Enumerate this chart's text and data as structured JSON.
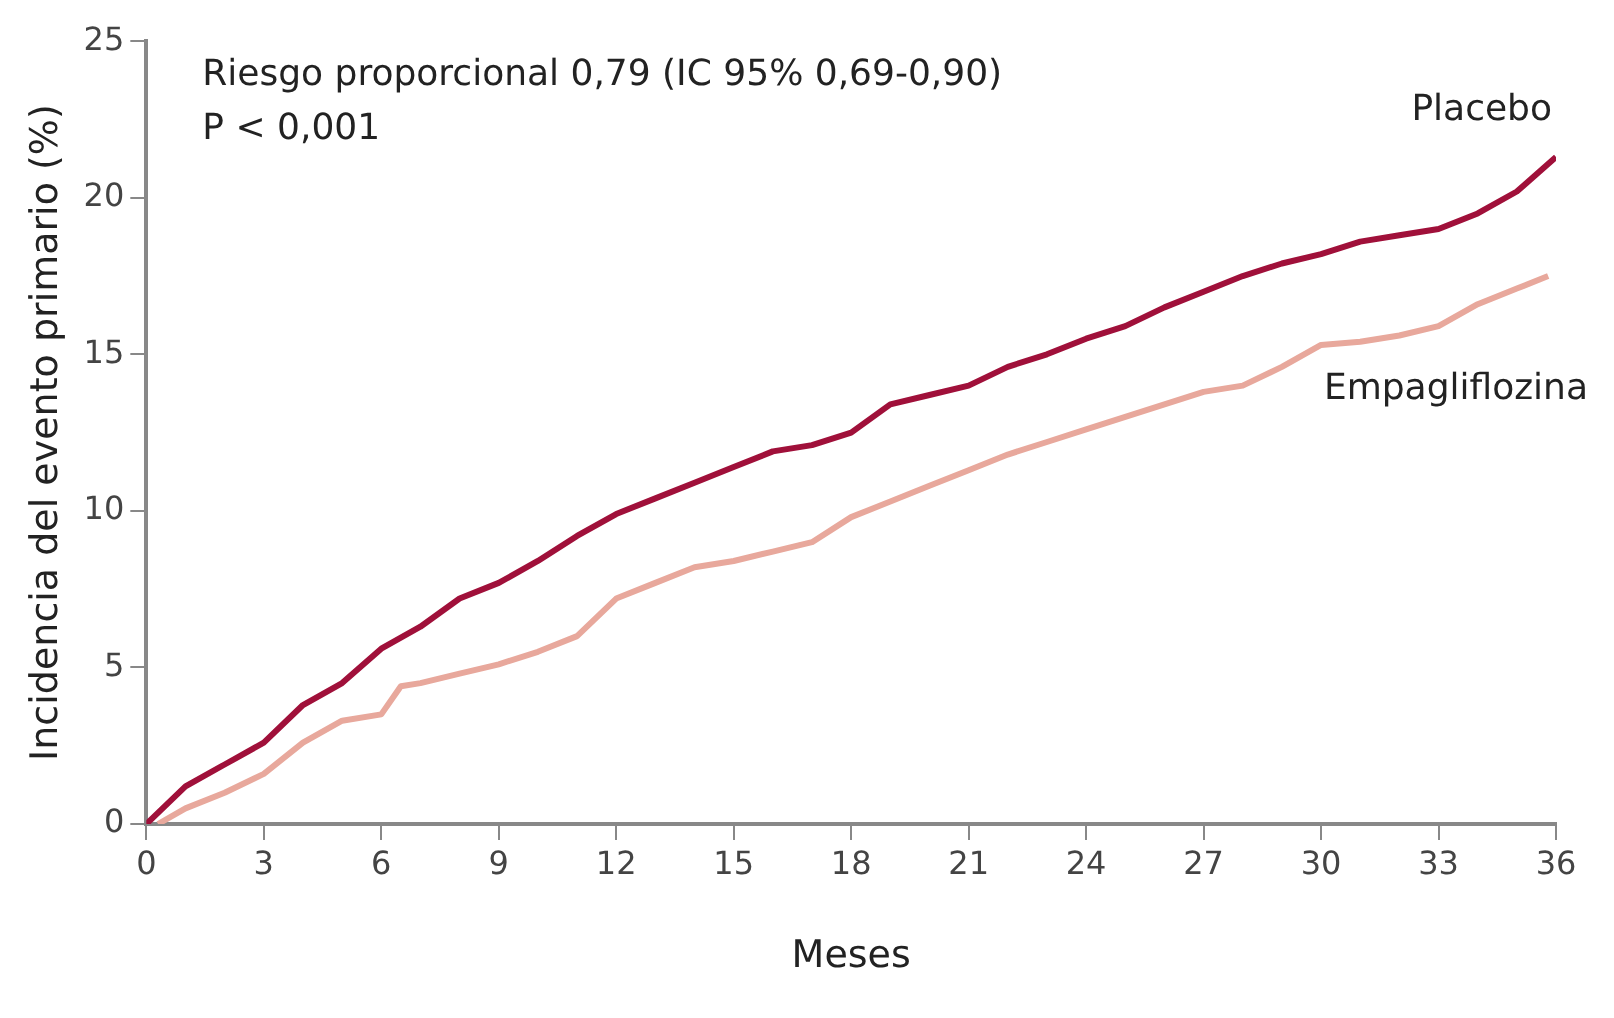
{
  "chart_data": {
    "type": "line",
    "xlabel": "Meses",
    "ylabel": "Incidencia del evento primario (%)",
    "annotations": [
      "Riesgo proporcional 0,79 (IC 95% 0,69-0,90)",
      "P < 0,001"
    ],
    "series": [
      {
        "name": "Placebo",
        "color": "#a0103a",
        "x": [
          0,
          1,
          2,
          3,
          4,
          5,
          6,
          7,
          8,
          9,
          10,
          11,
          12,
          13,
          14,
          15,
          16,
          17,
          18,
          19,
          20,
          21,
          22,
          23,
          24,
          25,
          26,
          27,
          28,
          29,
          30,
          31,
          32,
          33,
          34,
          35,
          36
        ],
        "values": [
          0,
          1.2,
          1.9,
          2.6,
          3.8,
          4.5,
          5.6,
          6.3,
          7.2,
          7.7,
          8.4,
          9.2,
          9.9,
          10.4,
          10.9,
          11.4,
          11.9,
          12.1,
          12.5,
          13.4,
          13.7,
          14.0,
          14.6,
          15.0,
          15.5,
          15.9,
          16.5,
          17.0,
          17.5,
          17.9,
          18.2,
          18.6,
          18.8,
          19.0,
          19.5,
          20.2,
          21.3
        ]
      },
      {
        "name": "Empagliflozina",
        "color": "#e8a89c",
        "x": [
          0.3,
          1,
          2,
          3,
          4,
          5,
          6,
          6.5,
          7,
          8,
          9,
          10,
          11,
          12,
          13,
          14,
          15,
          16,
          17,
          18,
          19,
          20,
          21,
          22,
          23,
          24,
          25,
          26,
          27,
          28,
          29,
          30,
          31,
          32,
          33,
          34,
          35,
          35.8
        ],
        "values": [
          0,
          0.5,
          1.0,
          1.6,
          2.6,
          3.3,
          3.5,
          4.4,
          4.5,
          4.8,
          5.1,
          5.5,
          6.0,
          7.2,
          7.7,
          8.2,
          8.4,
          8.7,
          9.0,
          9.8,
          10.3,
          10.8,
          11.3,
          11.8,
          12.2,
          12.6,
          13.0,
          13.4,
          13.8,
          14.0,
          14.6,
          15.3,
          15.4,
          15.6,
          15.9,
          16.6,
          17.1,
          17.5
        ]
      }
    ],
    "xlim": [
      0,
      36
    ],
    "xticks": [
      0,
      3,
      6,
      9,
      12,
      15,
      18,
      21,
      24,
      27,
      30,
      33,
      36
    ],
    "ylim": [
      0,
      25
    ],
    "yticks": [
      0,
      5,
      10,
      15,
      20,
      25
    ],
    "grid": false,
    "legend": false,
    "marker": "none",
    "line_style": "solid"
  }
}
